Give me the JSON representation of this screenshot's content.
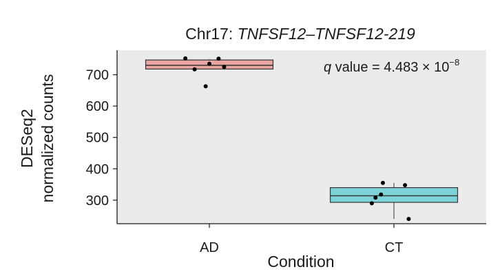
{
  "chart_data": {
    "type": "box",
    "title_prefix": "Chr17: ",
    "title_gene": "TNFSF12–TNFSF12-219",
    "xlabel": "Condition",
    "ylabel_line1": "DESeq2",
    "ylabel_line2": "normalized counts",
    "categories": [
      "AD",
      "CT"
    ],
    "yticks": [
      300,
      400,
      500,
      600,
      700
    ],
    "ylim": [
      225,
      778
    ],
    "grid": false,
    "annotation": {
      "q_symbol": "q",
      "text": " value  = 4.483 × 10",
      "exponent": "−8"
    },
    "boxes": [
      {
        "category": "AD",
        "q1": 718,
        "median": 730,
        "q3": 747,
        "whisker_low": 718,
        "whisker_high": 750,
        "color": "#e8a5a2"
      },
      {
        "category": "CT",
        "q1": 293,
        "median": 314,
        "q3": 340,
        "whisker_low": 240,
        "whisker_high": 355,
        "color": "#7dd3d8"
      }
    ],
    "points": [
      {
        "category": "AD",
        "jitter": -0.13,
        "y": 752
      },
      {
        "category": "AD",
        "jitter": 0.05,
        "y": 751
      },
      {
        "category": "AD",
        "jitter": 0.0,
        "y": 735
      },
      {
        "category": "AD",
        "jitter": 0.08,
        "y": 725
      },
      {
        "category": "AD",
        "jitter": -0.08,
        "y": 717
      },
      {
        "category": "AD",
        "jitter": -0.02,
        "y": 663
      },
      {
        "category": "CT",
        "jitter": -0.06,
        "y": 355
      },
      {
        "category": "CT",
        "jitter": 0.06,
        "y": 348
      },
      {
        "category": "CT",
        "jitter": -0.07,
        "y": 318
      },
      {
        "category": "CT",
        "jitter": -0.1,
        "y": 308
      },
      {
        "category": "CT",
        "jitter": -0.12,
        "y": 290
      },
      {
        "category": "CT",
        "jitter": 0.08,
        "y": 240
      }
    ]
  }
}
